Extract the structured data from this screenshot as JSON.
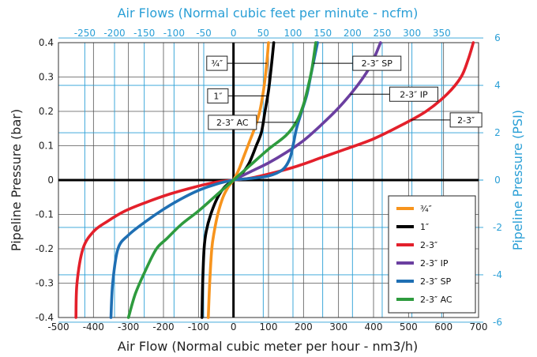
{
  "chart_data": {
    "type": "line",
    "top_title": "Air Flows (Normal cubic feet per minute - ncfm)",
    "xlabel": "Air Flow (Normal cubic meter per hour - nm3/h)",
    "ylabel_left": "Pipeline Pressure (bar)",
    "ylabel_right": "Pipeline Pressure (PSI)",
    "xlim": [
      -500,
      700
    ],
    "ylim": [
      -0.4,
      0.4
    ],
    "x_ticks": [
      "-500",
      "-400",
      "-300",
      "-200",
      "-100",
      "0",
      "100",
      "200",
      "300",
      "400",
      "500",
      "600",
      "700"
    ],
    "y_ticks": [
      "-0.4",
      "-0.3",
      "-0.2",
      "-0.1",
      "0",
      "0.1",
      "0.2",
      "0.3",
      "0.4"
    ],
    "top_ticks": [
      "-250",
      "-200",
      "-150",
      "-100",
      "-50",
      "0",
      "50",
      "100",
      "150",
      "200",
      "250",
      "300",
      "350"
    ],
    "right_ticks": [
      "-6",
      "-4",
      "-2",
      "0",
      "2",
      "4",
      "6"
    ],
    "grid": true,
    "legend_position": "lower-right",
    "colors": {
      "blue_axis": "#2a9fd6",
      "three_quarter": "#f7941d",
      "one": "#000000",
      "two_three": "#e3202b",
      "two_three_ip": "#6b3fa0",
      "two_three_sp": "#1f6fb3",
      "two_three_ac": "#2e9b3e"
    },
    "series": [
      {
        "name": "¾″",
        "color": "#f7941d",
        "x": [
          -72,
          -68,
          -62,
          -55,
          -45,
          -30,
          -15,
          0,
          15,
          30,
          45,
          60,
          75,
          87,
          95,
          100
        ],
        "y": [
          -0.4,
          -0.3,
          -0.2,
          -0.15,
          -0.1,
          -0.05,
          -0.02,
          0,
          0.03,
          0.07,
          0.11,
          0.15,
          0.2,
          0.27,
          0.34,
          0.4
        ]
      },
      {
        "name": "1″",
        "color": "#000000",
        "x": [
          -90,
          -88,
          -84,
          -78,
          -65,
          -45,
          -25,
          0,
          25,
          45,
          65,
          80,
          90,
          100,
          108,
          115
        ],
        "y": [
          -0.4,
          -0.3,
          -0.2,
          -0.15,
          -0.1,
          -0.05,
          -0.02,
          0,
          0.02,
          0.05,
          0.1,
          0.14,
          0.2,
          0.26,
          0.33,
          0.4
        ]
      },
      {
        "name": "2-3″",
        "color": "#e3202b",
        "x": [
          -450,
          -447,
          -430,
          -400,
          -360,
          -310,
          -250,
          -180,
          -110,
          -50,
          0,
          50,
          110,
          180,
          250,
          320,
          400,
          480,
          550,
          610,
          650,
          670,
          685
        ],
        "y": [
          -0.4,
          -0.3,
          -0.2,
          -0.15,
          -0.12,
          -0.09,
          -0.065,
          -0.04,
          -0.02,
          -0.006,
          0,
          0.006,
          0.02,
          0.04,
          0.065,
          0.09,
          0.12,
          0.16,
          0.2,
          0.25,
          0.3,
          0.35,
          0.4
        ]
      },
      {
        "name": "2-3″ IP",
        "color": "#6b3fa0",
        "x": [
          0,
          50,
          100,
          150,
          200,
          250,
          300,
          350,
          390,
          420
        ],
        "y": [
          0,
          0.025,
          0.05,
          0.08,
          0.115,
          0.16,
          0.21,
          0.27,
          0.33,
          0.4
        ]
      },
      {
        "name": "2-3″ SP",
        "color": "#1f6fb3",
        "x": [
          -350,
          -345,
          -330,
          -300,
          -250,
          -200,
          -150,
          -100,
          -50,
          0,
          50,
          100,
          140,
          160,
          170,
          180,
          195,
          210,
          220,
          230,
          240
        ],
        "y": [
          -0.4,
          -0.3,
          -0.2,
          -0.16,
          -0.12,
          -0.085,
          -0.055,
          -0.03,
          -0.012,
          0,
          0.005,
          0.012,
          0.03,
          0.06,
          0.1,
          0.15,
          0.2,
          0.25,
          0.3,
          0.35,
          0.4
        ]
      },
      {
        "name": "2-3″ AC",
        "color": "#2e9b3e",
        "x": [
          -300,
          -280,
          -250,
          -220,
          -190,
          -150,
          -100,
          -50,
          0,
          50,
          100,
          150,
          180,
          200,
          215,
          225,
          235
        ],
        "y": [
          -0.4,
          -0.33,
          -0.26,
          -0.2,
          -0.17,
          -0.13,
          -0.09,
          -0.045,
          0,
          0.045,
          0.09,
          0.13,
          0.17,
          0.22,
          0.28,
          0.33,
          0.4
        ]
      }
    ],
    "callouts": [
      {
        "label": "¾″",
        "series": 0,
        "y": 0.34,
        "side": "left"
      },
      {
        "label": "1″",
        "series": 1,
        "y": 0.245,
        "side": "left"
      },
      {
        "label": "2-3″ AC",
        "series": 5,
        "y": 0.168,
        "side": "left"
      },
      {
        "label": "2-3″ SP",
        "series": 4,
        "y": 0.34,
        "side": "right"
      },
      {
        "label": "2-3″ IP",
        "series": 3,
        "y": 0.25,
        "side": "right"
      },
      {
        "label": "2-3″",
        "series": 2,
        "y": 0.175,
        "side": "right"
      }
    ]
  }
}
